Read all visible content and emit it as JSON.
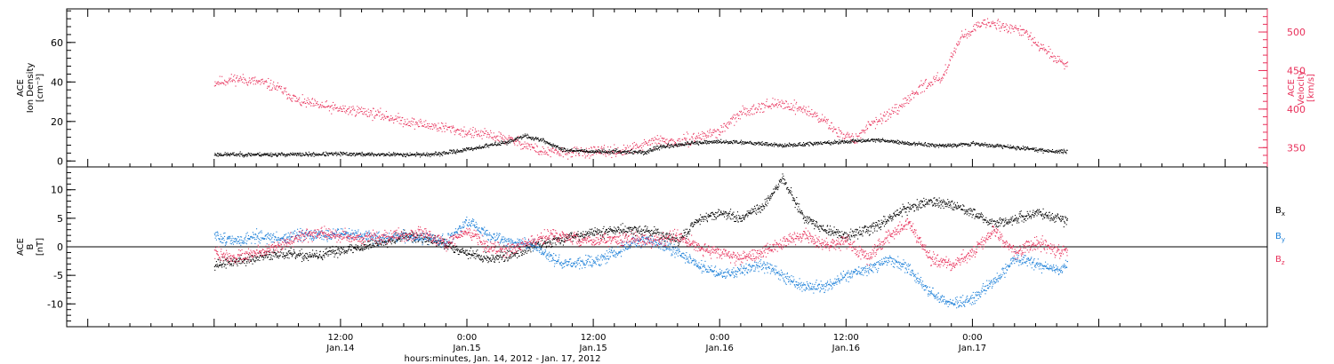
{
  "chart_data": [
    {
      "type": "line",
      "panel": "top",
      "ylabel": [
        "ACE",
        "Ion Density",
        "[cm⁻³]"
      ],
      "ylim": [
        -3,
        77
      ],
      "yticks": [
        0,
        20,
        40,
        60
      ],
      "ytick_labels": [
        "0",
        "20",
        "40",
        "60"
      ],
      "y2label": [
        "ACE",
        "Velocity",
        "[km/s]"
      ],
      "y2lim": [
        325,
        530
      ],
      "y2ticks": [
        350,
        400,
        450,
        500
      ],
      "y2tick_labels": [
        "350",
        "400",
        "450",
        "500"
      ],
      "grid": false,
      "colors": {
        "density": "#000000",
        "velocity": "#e8305a"
      },
      "series": [
        {
          "axis": "left",
          "x": [
            0,
            3,
            6,
            9,
            12,
            15,
            18,
            21,
            24,
            26,
            28,
            29.5,
            30,
            31,
            33,
            36,
            39,
            41,
            42,
            45,
            48,
            51,
            54,
            57,
            60,
            63,
            66,
            69,
            72,
            75,
            78,
            80,
            81
          ],
          "values": [
            3.5,
            3.5,
            3.5,
            3.5,
            3.8,
            3.5,
            3.5,
            3.5,
            6,
            8,
            10,
            13,
            12,
            11,
            6,
            5,
            5,
            4.5,
            7,
            9,
            10,
            9.5,
            8,
            9,
            10,
            11,
            9,
            8,
            9,
            7.5,
            6,
            5,
            5
          ]
        },
        {
          "axis": "right",
          "x": [
            0,
            1,
            2,
            4,
            5,
            6,
            7,
            8,
            9,
            10,
            12,
            14,
            16,
            18,
            20,
            22,
            24,
            26,
            28,
            30,
            31,
            33,
            36,
            39,
            41,
            42,
            44,
            46,
            48,
            50,
            52,
            54,
            56,
            58,
            59,
            61,
            62,
            64,
            65,
            66,
            67,
            68,
            69,
            70,
            71,
            72,
            73,
            74,
            75,
            76,
            77,
            78,
            79,
            80,
            81
          ],
          "values": [
            435,
            437,
            440,
            436,
            433,
            428,
            420,
            410,
            408,
            405,
            400,
            398,
            392,
            385,
            380,
            376,
            370,
            367,
            361,
            352,
            345,
            344,
            345,
            346,
            355,
            360,
            357,
            365,
            372,
            395,
            405,
            407,
            400,
            385,
            372,
            360,
            380,
            393,
            400,
            415,
            428,
            436,
            440,
            470,
            495,
            505,
            510,
            512,
            508,
            505,
            500,
            485,
            475,
            465,
            458
          ]
        }
      ]
    },
    {
      "type": "line",
      "panel": "bottom",
      "ylabel": [
        "ACE",
        "B",
        "[nT]"
      ],
      "ylim": [
        -14,
        14
      ],
      "yticks": [
        -10,
        -5,
        0,
        5,
        10
      ],
      "ytick_labels": [
        "-10",
        "-5",
        "0",
        "5",
        "10"
      ],
      "grid": false,
      "legend": "right",
      "zero_line": true,
      "x": [
        0,
        2,
        4,
        6,
        8,
        10,
        12,
        14,
        16,
        18,
        20,
        22,
        24,
        26,
        28,
        30,
        32,
        34,
        36,
        38,
        40,
        42,
        44,
        46,
        48,
        50,
        52,
        54,
        56,
        58,
        60,
        62,
        64,
        66,
        68,
        70,
        72,
        74,
        76,
        78,
        80,
        81
      ],
      "series": [
        {
          "name": "B",
          "sub": "x",
          "color": "#000000",
          "values": [
            -3,
            -2.5,
            -2,
            -1,
            -1.5,
            -1.5,
            -0.5,
            0,
            1,
            2,
            1.5,
            0.5,
            -1,
            -2,
            -1.5,
            0,
            1,
            2,
            2.5,
            3,
            3,
            2.5,
            1,
            5,
            6,
            5,
            7,
            12,
            5,
            3,
            2,
            3,
            5,
            7,
            8,
            7.5,
            6,
            4,
            5,
            6,
            5,
            4.5
          ]
        },
        {
          "name": "B",
          "sub": "y",
          "color": "#1b7fd8",
          "values": [
            2,
            1,
            2,
            1.5,
            2,
            2,
            2.5,
            2,
            1.5,
            2,
            1.5,
            1,
            4.5,
            2,
            1,
            0.5,
            -2,
            -3,
            -2.5,
            -1,
            1,
            1,
            -1,
            -3,
            -5,
            -4,
            -3,
            -5,
            -7,
            -7,
            -5,
            -4,
            -2,
            -4,
            -8,
            -10,
            -9,
            -6,
            -2,
            -3,
            -4,
            -3
          ]
        },
        {
          "name": "B",
          "sub": "z",
          "color": "#e8305a",
          "values": [
            -1,
            -2,
            -1,
            0,
            2,
            2.5,
            2,
            1.5,
            2,
            2,
            2.5,
            0.5,
            3,
            0,
            -0.5,
            1,
            2,
            1.5,
            1,
            1.5,
            1.5,
            1,
            2,
            0,
            -1,
            -2,
            -1,
            1,
            2,
            0.5,
            1,
            -2,
            2,
            4,
            -2,
            -3,
            -1,
            3,
            -1,
            1,
            -0.5,
            -1
          ]
        }
      ]
    }
  ],
  "xaxis": {
    "range_hours": [
      -14,
      100
    ],
    "major_ticks": [
      12,
      24,
      36,
      48,
      60,
      72
    ],
    "minor_step_hours": 2,
    "tick_labels": [
      {
        "time": "12:00",
        "date": "Jan.14"
      },
      {
        "time": "0:00",
        "date": "Jan.15"
      },
      {
        "time": "12:00",
        "date": "Jan.15"
      },
      {
        "time": "0:00",
        "date": "Jan.16"
      },
      {
        "time": "12:00",
        "date": "Jan.16"
      },
      {
        "time": "0:00",
        "date": "Jan.17"
      }
    ],
    "xlabel": "hours:minutes, Jan. 14, 2012 - Jan. 17, 2012"
  }
}
